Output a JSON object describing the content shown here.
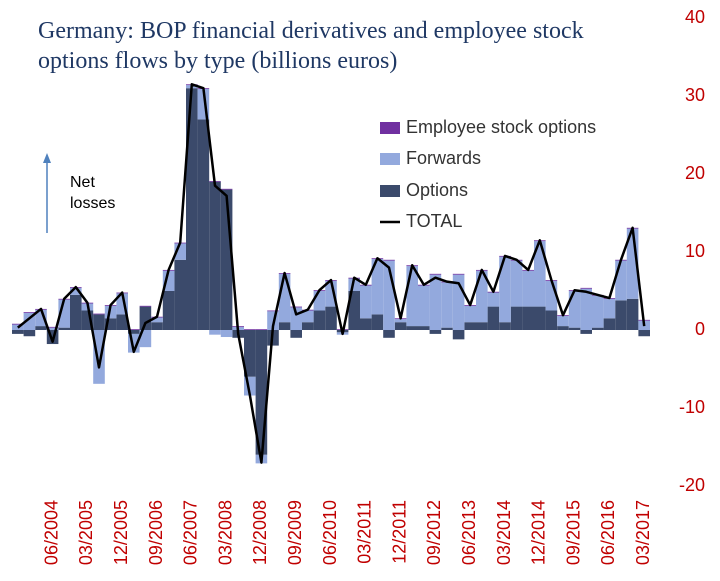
{
  "chart_data": {
    "type": "bar",
    "stacked": true,
    "title": "Germany: BOP financial derivatives and employee stock options flows by type (billions euros)",
    "annotations": [
      "Net losses"
    ],
    "categories": [
      null,
      null,
      null,
      "06/2004",
      null,
      null,
      "03/2005",
      null,
      null,
      "12/2005",
      null,
      null,
      "09/2006",
      null,
      null,
      "06/2007",
      null,
      null,
      "03/2008",
      null,
      null,
      "12/2008",
      null,
      null,
      "09/2009",
      null,
      null,
      "06/2010",
      null,
      null,
      "03/2011",
      null,
      null,
      "12/2011",
      null,
      null,
      "09/2012",
      null,
      null,
      "06/2013",
      null,
      null,
      "03/2014",
      null,
      null,
      "12/2014",
      null,
      null,
      "09/2015",
      null,
      null,
      "06/2016",
      null,
      null,
      "03/2017"
    ],
    "series": [
      {
        "name": "Employee stock options",
        "color": "#7030a0",
        "values": [
          0.1,
          0.1,
          0.1,
          0.1,
          0.1,
          0.1,
          0.1,
          0.1,
          0.1,
          0.1,
          0.1,
          0.1,
          0.1,
          0.1,
          0.1,
          0.1,
          0.1,
          0.1,
          0.1,
          0.1,
          0.1,
          0.1,
          0.1,
          0.1,
          0.1,
          0.1,
          0.1,
          0.1,
          0.1,
          0.1,
          0.1,
          0.1,
          0.1,
          0.1,
          0.1,
          0.1,
          0.1,
          0.1,
          0.1,
          0.1,
          0.1,
          0.1,
          0.1,
          0.1,
          0.1,
          0.1,
          0.1,
          0.1,
          0.1,
          0.1,
          0.1,
          0.1,
          0.1,
          0.1,
          0.1
        ]
      },
      {
        "name": "Forwards",
        "color": "#93a9dd",
        "values": [
          0.7,
          2.2,
          2.1,
          0.3,
          3.6,
          0.9,
          0.9,
          -6.9,
          1.6,
          2.7,
          -2.4,
          -2.2,
          0.6,
          2.6,
          2.1,
          0.4,
          3.9,
          -0.6,
          -0.9,
          0.4,
          -2.4,
          -1.1,
          2.4,
          6.2,
          2.9,
          1.5,
          2.5,
          3.3,
          -0.3,
          1.6,
          4.2,
          7.1,
          8.9,
          0.4,
          7.7,
          5.2,
          7.1,
          5.8,
          7.1,
          2.1,
          6.6,
          1.8,
          8.4,
          5.9,
          4.6,
          8.4,
          3.8,
          1.3,
          4.7,
          5.3,
          4.1,
          2.5,
          5.1,
          9.0,
          1.2
        ]
      },
      {
        "name": "Options",
        "color": "#3b4a6b",
        "values": [
          -0.5,
          -0.8,
          0.5,
          -1.8,
          0.3,
          4.5,
          2.5,
          2.0,
          1.5,
          2.0,
          -0.5,
          3.0,
          1.0,
          5.0,
          9.0,
          31.0,
          27.0,
          19.0,
          18.0,
          -1.0,
          -6.0,
          -16.0,
          -2.0,
          1.0,
          -1.0,
          1.0,
          2.5,
          3.0,
          -0.3,
          5.0,
          1.5,
          2.0,
          -1.0,
          1.0,
          0.5,
          0.5,
          -0.5,
          0.3,
          -1.2,
          1.0,
          1.0,
          3.0,
          1.0,
          3.0,
          3.0,
          3.0,
          2.5,
          0.5,
          0.3,
          -0.5,
          0.3,
          1.5,
          3.8,
          4.0,
          -0.8
        ]
      },
      {
        "name": "TOTAL",
        "color": "#000000",
        "type": "line",
        "values": [
          0.3,
          1.5,
          2.7,
          -1.5,
          4.0,
          5.5,
          3.5,
          -4.8,
          3.2,
          4.8,
          -2.8,
          0.9,
          1.7,
          7.7,
          11.2,
          31.5,
          31.0,
          18.5,
          17.2,
          -0.5,
          -8.3,
          -17.0,
          0.5,
          7.3,
          2.0,
          2.6,
          5.1,
          6.4,
          -0.5,
          6.7,
          5.8,
          9.2,
          8.0,
          1.5,
          8.3,
          5.8,
          6.7,
          6.2,
          6.0,
          3.2,
          7.7,
          4.9,
          9.5,
          9.0,
          7.7,
          11.5,
          6.4,
          1.9,
          5.1,
          4.9,
          4.5,
          4.1,
          9.0,
          13.1,
          0.5
        ]
      }
    ],
    "ylim": [
      -20,
      40
    ],
    "yticks": [
      -20,
      -10,
      0,
      10,
      20,
      30,
      40
    ],
    "axis_side": "right",
    "tick_color": "#c00000",
    "grid": false
  }
}
